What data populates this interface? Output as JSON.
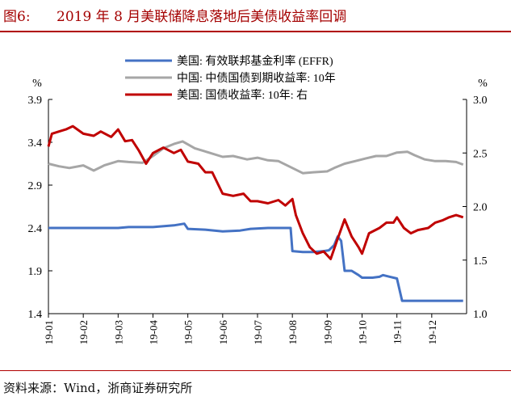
{
  "figure": {
    "label": "图6:",
    "title": "2019 年 8 月美联储降息落地后美债收益率回调",
    "source": "资料来源：Wind，浙商证券研究所"
  },
  "chart_data": {
    "type": "line",
    "x_tick_labels": [
      "19-01",
      "19-02",
      "19-03",
      "19-04",
      "19-05",
      "19-06",
      "19-07",
      "19-08",
      "19-09",
      "19-10",
      "19-11",
      "19-12"
    ],
    "y_left": {
      "unit": "%",
      "ticks": [
        "3.9",
        "3.4",
        "2.9",
        "2.4",
        "1.9",
        "1.4"
      ],
      "ylim": [
        1.4,
        3.9
      ]
    },
    "y_right": {
      "unit": "%",
      "ticks": [
        "3.0",
        "2.5",
        "2.0",
        "1.5",
        "1.0"
      ],
      "ylim": [
        1.0,
        3.0
      ]
    },
    "grid": false,
    "legend_placement": "top-center",
    "series": [
      {
        "name": "美国: 有效联邦基金利率 (EFFR)",
        "axis": "left",
        "color": "#4472c4",
        "points": [
          [
            0,
            2.4
          ],
          [
            1.0,
            2.4
          ],
          [
            2.0,
            2.4
          ],
          [
            2.3,
            2.41
          ],
          [
            3.0,
            2.41
          ],
          [
            3.6,
            2.43
          ],
          [
            3.9,
            2.45
          ],
          [
            4.0,
            2.39
          ],
          [
            4.5,
            2.38
          ],
          [
            5.0,
            2.36
          ],
          [
            5.5,
            2.37
          ],
          [
            5.8,
            2.39
          ],
          [
            6.3,
            2.4
          ],
          [
            6.7,
            2.4
          ],
          [
            6.95,
            2.4
          ],
          [
            7.0,
            2.13
          ],
          [
            7.3,
            2.12
          ],
          [
            7.6,
            2.12
          ],
          [
            7.9,
            2.13
          ],
          [
            8.05,
            2.14
          ],
          [
            8.2,
            2.2
          ],
          [
            8.3,
            2.3
          ],
          [
            8.4,
            2.25
          ],
          [
            8.5,
            1.9
          ],
          [
            8.7,
            1.9
          ],
          [
            8.9,
            1.85
          ],
          [
            9.0,
            1.82
          ],
          [
            9.3,
            1.82
          ],
          [
            9.5,
            1.83
          ],
          [
            9.6,
            1.85
          ],
          [
            9.8,
            1.83
          ],
          [
            10.0,
            1.81
          ],
          [
            10.15,
            1.55
          ],
          [
            10.5,
            1.55
          ],
          [
            11.0,
            1.55
          ],
          [
            11.5,
            1.55
          ],
          [
            11.9,
            1.55
          ]
        ]
      },
      {
        "name": "中国: 中债国债到期收益率: 10年",
        "axis": "left",
        "color": "#a6a6a6",
        "points": [
          [
            0,
            3.15
          ],
          [
            0.3,
            3.12
          ],
          [
            0.6,
            3.1
          ],
          [
            1.0,
            3.13
          ],
          [
            1.3,
            3.07
          ],
          [
            1.6,
            3.13
          ],
          [
            2.0,
            3.18
          ],
          [
            2.3,
            3.17
          ],
          [
            2.7,
            3.16
          ],
          [
            3.0,
            3.24
          ],
          [
            3.3,
            3.33
          ],
          [
            3.6,
            3.38
          ],
          [
            3.85,
            3.41
          ],
          [
            4.2,
            3.33
          ],
          [
            4.6,
            3.28
          ],
          [
            5.0,
            3.23
          ],
          [
            5.3,
            3.24
          ],
          [
            5.7,
            3.2
          ],
          [
            6.0,
            3.22
          ],
          [
            6.3,
            3.19
          ],
          [
            6.6,
            3.18
          ],
          [
            7.0,
            3.1
          ],
          [
            7.3,
            3.04
          ],
          [
            7.6,
            3.05
          ],
          [
            8.0,
            3.06
          ],
          [
            8.2,
            3.1
          ],
          [
            8.5,
            3.15
          ],
          [
            8.8,
            3.18
          ],
          [
            9.1,
            3.21
          ],
          [
            9.4,
            3.24
          ],
          [
            9.7,
            3.24
          ],
          [
            10.0,
            3.28
          ],
          [
            10.3,
            3.29
          ],
          [
            10.5,
            3.25
          ],
          [
            10.8,
            3.2
          ],
          [
            11.1,
            3.18
          ],
          [
            11.4,
            3.18
          ],
          [
            11.7,
            3.17
          ],
          [
            11.9,
            3.14
          ]
        ]
      },
      {
        "name": "美国: 国债收益率: 10年: 右",
        "axis": "right",
        "color": "#c00000",
        "points": [
          [
            0,
            2.56
          ],
          [
            0.1,
            2.68
          ],
          [
            0.3,
            2.7
          ],
          [
            0.5,
            2.72
          ],
          [
            0.7,
            2.75
          ],
          [
            1.0,
            2.68
          ],
          [
            1.3,
            2.66
          ],
          [
            1.5,
            2.7
          ],
          [
            1.8,
            2.65
          ],
          [
            2.0,
            2.72
          ],
          [
            2.2,
            2.61
          ],
          [
            2.4,
            2.62
          ],
          [
            2.6,
            2.52
          ],
          [
            2.8,
            2.4
          ],
          [
            3.0,
            2.5
          ],
          [
            3.3,
            2.55
          ],
          [
            3.6,
            2.5
          ],
          [
            3.8,
            2.53
          ],
          [
            4.0,
            2.42
          ],
          [
            4.3,
            2.4
          ],
          [
            4.5,
            2.32
          ],
          [
            4.7,
            2.32
          ],
          [
            5.0,
            2.12
          ],
          [
            5.3,
            2.1
          ],
          [
            5.6,
            2.12
          ],
          [
            5.8,
            2.05
          ],
          [
            6.0,
            2.05
          ],
          [
            6.3,
            2.03
          ],
          [
            6.6,
            2.06
          ],
          [
            6.8,
            2.01
          ],
          [
            7.0,
            2.07
          ],
          [
            7.1,
            1.92
          ],
          [
            7.3,
            1.75
          ],
          [
            7.5,
            1.62
          ],
          [
            7.7,
            1.56
          ],
          [
            7.9,
            1.58
          ],
          [
            8.1,
            1.51
          ],
          [
            8.3,
            1.7
          ],
          [
            8.5,
            1.88
          ],
          [
            8.7,
            1.72
          ],
          [
            8.9,
            1.62
          ],
          [
            9.0,
            1.56
          ],
          [
            9.2,
            1.75
          ],
          [
            9.5,
            1.8
          ],
          [
            9.7,
            1.85
          ],
          [
            9.9,
            1.85
          ],
          [
            10.0,
            1.9
          ],
          [
            10.2,
            1.8
          ],
          [
            10.4,
            1.75
          ],
          [
            10.6,
            1.78
          ],
          [
            10.9,
            1.8
          ],
          [
            11.1,
            1.85
          ],
          [
            11.3,
            1.87
          ],
          [
            11.5,
            1.9
          ],
          [
            11.7,
            1.92
          ],
          [
            11.9,
            1.9
          ]
        ]
      }
    ]
  }
}
